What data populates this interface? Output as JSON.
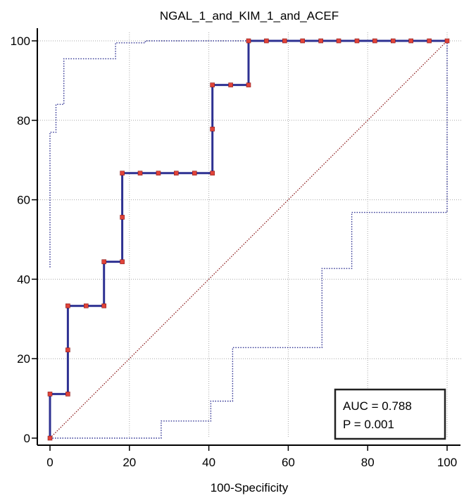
{
  "chart_data": {
    "type": "line",
    "title": "NGAL_1_and_KIM_1_and_ACEF",
    "xlabel": "100-Specificity",
    "ylabel": "",
    "xlim": [
      0,
      100
    ],
    "ylim": [
      0,
      100
    ],
    "xticks": [
      "0",
      "20",
      "40",
      "60",
      "80",
      "100"
    ],
    "yticks": [
      "0",
      "20",
      "40",
      "60",
      "80",
      "100"
    ],
    "grid": true,
    "annotation": {
      "line1": "AUC = 0.788",
      "line2": "P = 0.001",
      "placement": "bottom-right"
    },
    "series": [
      {
        "role": "roc-curve",
        "style": "solid-step-with-markers",
        "color": "#2e3192",
        "marker_color": "#e0443a",
        "points": [
          [
            0,
            0
          ],
          [
            0,
            11.1
          ],
          [
            4.5,
            11.1
          ],
          [
            4.5,
            22.2
          ],
          [
            4.5,
            33.3
          ],
          [
            9.1,
            33.3
          ],
          [
            13.6,
            33.3
          ],
          [
            13.6,
            44.4
          ],
          [
            18.2,
            44.4
          ],
          [
            18.2,
            55.6
          ],
          [
            18.2,
            66.7
          ],
          [
            22.7,
            66.7
          ],
          [
            27.3,
            66.7
          ],
          [
            31.8,
            66.7
          ],
          [
            36.4,
            66.7
          ],
          [
            40.9,
            66.7
          ],
          [
            40.9,
            77.8
          ],
          [
            40.9,
            88.9
          ],
          [
            45.5,
            88.9
          ],
          [
            50,
            88.9
          ],
          [
            50,
            100
          ],
          [
            54.5,
            100
          ],
          [
            59.1,
            100
          ],
          [
            63.6,
            100
          ],
          [
            68.2,
            100
          ],
          [
            72.7,
            100
          ],
          [
            77.3,
            100
          ],
          [
            81.8,
            100
          ],
          [
            86.4,
            100
          ],
          [
            90.9,
            100
          ],
          [
            95.5,
            100
          ],
          [
            100,
            100
          ]
        ]
      },
      {
        "role": "upper-confidence-bound",
        "style": "dotted",
        "color": "#2e3192",
        "points": [
          [
            0,
            43
          ],
          [
            0,
            77
          ],
          [
            1.5,
            77
          ],
          [
            1.5,
            84
          ],
          [
            3.5,
            84
          ],
          [
            3.5,
            95.5
          ],
          [
            16.5,
            95.5
          ],
          [
            16.5,
            99.5
          ],
          [
            24,
            99.5
          ],
          [
            24,
            100
          ],
          [
            100,
            100
          ]
        ]
      },
      {
        "role": "lower-confidence-bound",
        "style": "dotted",
        "color": "#2e3192",
        "points": [
          [
            0,
            0
          ],
          [
            28,
            0
          ],
          [
            28,
            4.3
          ],
          [
            40.5,
            4.3
          ],
          [
            40.5,
            9.3
          ],
          [
            46,
            9.3
          ],
          [
            46,
            22.8
          ],
          [
            68.5,
            22.8
          ],
          [
            68.5,
            42.7
          ],
          [
            76,
            42.7
          ],
          [
            76,
            56.8
          ],
          [
            100,
            56.8
          ],
          [
            100,
            100
          ]
        ]
      },
      {
        "role": "reference-diagonal",
        "style": "dotted",
        "color": "#8b1a1a",
        "points": [
          [
            0,
            0
          ],
          [
            100,
            100
          ]
        ]
      }
    ]
  }
}
